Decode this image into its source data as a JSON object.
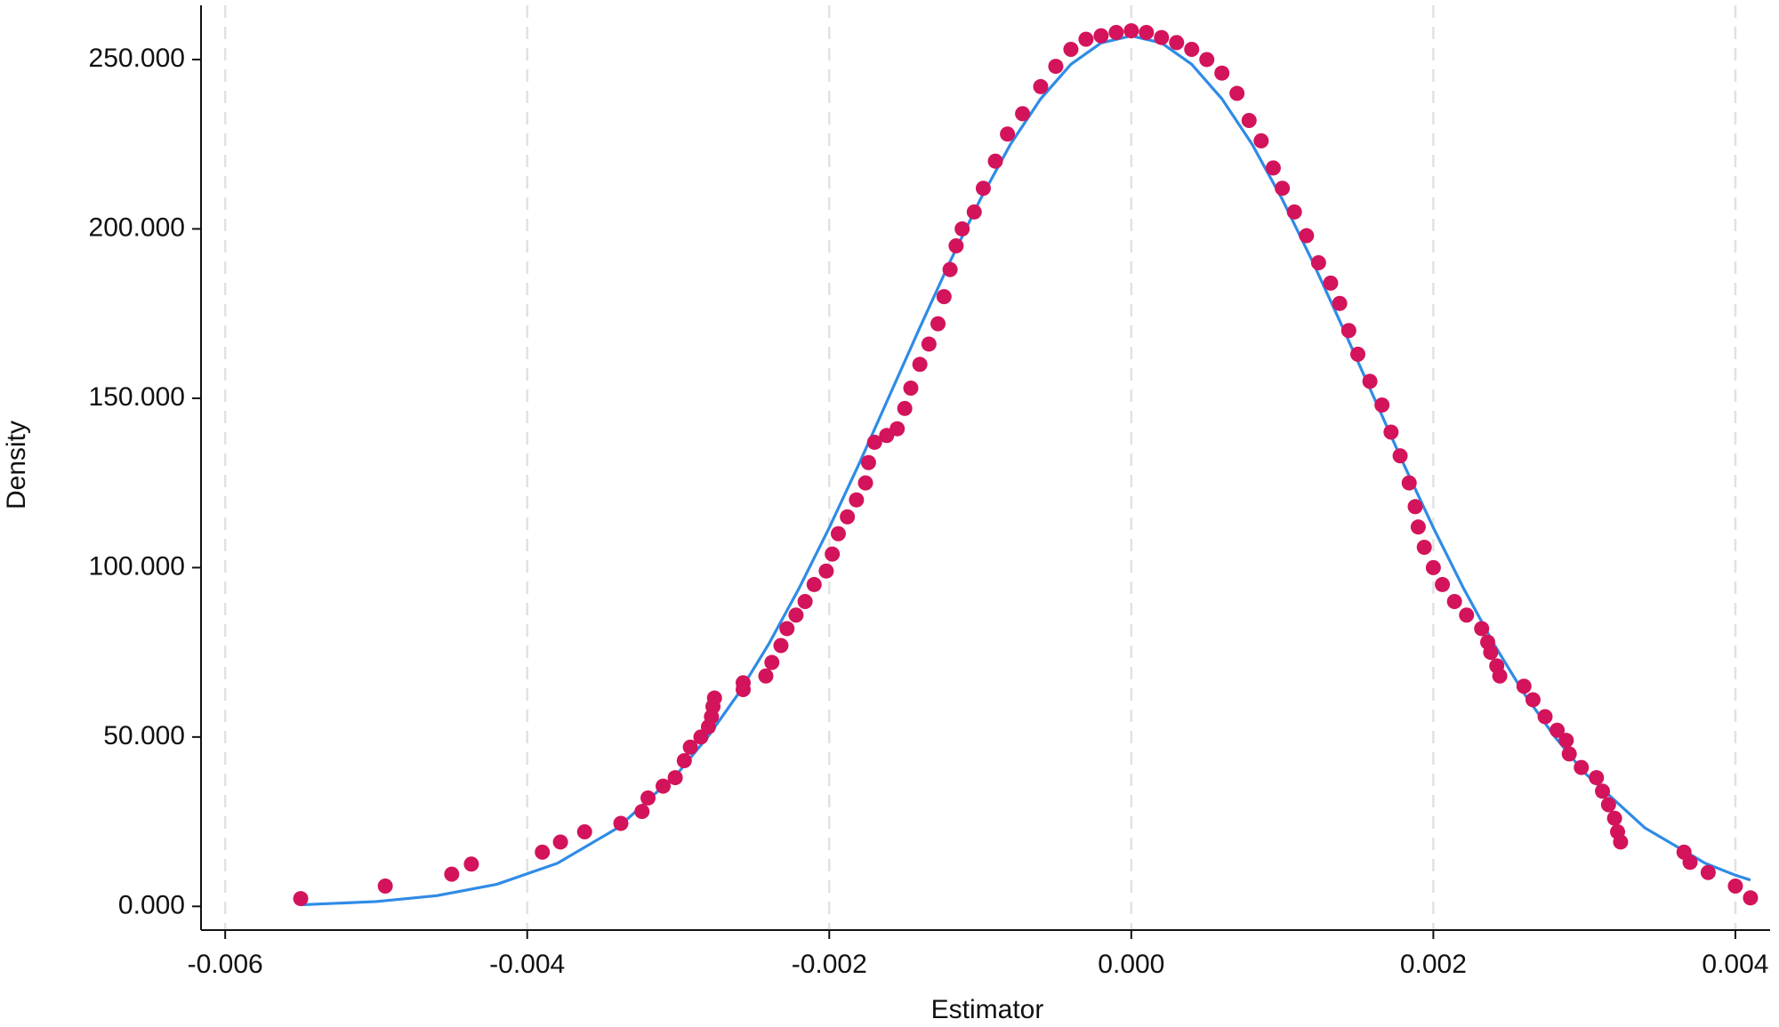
{
  "chart_data": {
    "type": "scatter",
    "xlabel": "Estimator",
    "ylabel": "Density",
    "xlim": [
      -0.00616,
      0.00423
    ],
    "ylim": [
      -7,
      266
    ],
    "xticks": [
      -0.006,
      -0.004,
      -0.002,
      {
        "value": 0,
        "label": "0.000"
      },
      0.002,
      0.004
    ],
    "yticks": [
      {
        "value": 0,
        "label": "0.000"
      },
      {
        "value": 50,
        "label": "50.000"
      },
      {
        "value": 100,
        "label": "100.000"
      },
      {
        "value": 150,
        "label": "150.000"
      },
      {
        "value": 200,
        "label": "200.000"
      },
      {
        "value": 250,
        "label": "250.000"
      }
    ],
    "grid": true,
    "series": [
      {
        "type": "scatter",
        "color": "#d3135b",
        "x": [
          -0.0055,
          -0.00494,
          -0.0045,
          -0.00437,
          -0.0039,
          -0.00378,
          -0.00362,
          -0.00338,
          -0.00324,
          -0.0032,
          -0.0031,
          -0.00302,
          -0.00296,
          -0.00292,
          -0.00285,
          -0.0028,
          -0.00278,
          -0.00277,
          -0.00276,
          -0.00257,
          -0.00257,
          -0.00242,
          -0.00238,
          -0.00232,
          -0.00228,
          -0.00222,
          -0.00216,
          -0.0021,
          -0.00202,
          -0.00198,
          -0.00194,
          -0.00188,
          -0.00182,
          -0.00176,
          -0.00174,
          -0.0017,
          -0.00162,
          -0.00155,
          -0.0015,
          -0.00146,
          -0.0014,
          -0.00134,
          -0.00128,
          -0.00124,
          -0.0012,
          -0.00116,
          -0.00112,
          -0.00104,
          -0.00098,
          -0.0009,
          -0.00082,
          -0.00072,
          -0.0006,
          -0.0005,
          -0.0004,
          -0.0003,
          -0.0002,
          -0.0001,
          0,
          0.0001,
          0.0002,
          0.0003,
          0.0004,
          0.0005,
          0.0006,
          0.0007,
          0.00078,
          0.00086,
          0.00094,
          0.001,
          0.00108,
          0.00116,
          0.00124,
          0.00132,
          0.00138,
          0.00144,
          0.0015,
          0.00158,
          0.00166,
          0.00172,
          0.00178,
          0.00184,
          0.00188,
          0.0019,
          0.00194,
          0.002,
          0.00206,
          0.00214,
          0.00222,
          0.00232,
          0.00236,
          0.00238,
          0.00242,
          0.00244,
          0.0026,
          0.00266,
          0.00274,
          0.00282,
          0.00288,
          0.0029,
          0.00298,
          0.00308,
          0.00312,
          0.00316,
          0.0032,
          0.00322,
          0.00324,
          0.00366,
          0.0037,
          0.00382,
          0.004,
          0.0041
        ],
        "values": [
          2.3,
          6,
          9.5,
          12.5,
          16,
          19,
          22,
          24.5,
          28,
          32,
          35.5,
          38,
          43,
          47,
          50,
          53,
          56,
          59,
          61.5,
          64,
          66,
          68,
          72,
          77,
          82,
          86,
          90,
          95,
          99,
          104,
          110,
          115,
          120,
          125,
          131,
          137,
          139,
          141,
          147,
          153,
          160,
          166,
          172,
          180,
          188,
          195,
          200,
          205,
          212,
          220,
          228,
          234,
          242,
          248,
          253,
          256,
          257,
          258,
          258.5,
          258,
          256.5,
          255,
          253,
          250,
          246,
          240,
          232,
          226,
          218,
          212,
          205,
          198,
          190,
          184,
          178,
          170,
          163,
          155,
          148,
          140,
          133,
          125,
          118,
          112,
          106,
          100,
          95,
          90,
          86,
          82,
          78,
          75,
          71,
          68,
          65,
          61,
          56,
          52,
          49,
          45,
          41,
          38,
          34,
          30,
          26,
          22,
          19,
          16,
          13,
          10,
          6,
          2.5
        ]
      },
      {
        "type": "line",
        "color": "#2f8be6",
        "x": [
          -0.0055,
          -0.005,
          -0.0046,
          -0.0042,
          -0.0038,
          -0.0034,
          -0.003,
          -0.0028,
          -0.0026,
          -0.0024,
          -0.0022,
          -0.002,
          -0.0018,
          -0.0016,
          -0.0014,
          -0.0012,
          -0.001,
          -0.0008,
          -0.0006,
          -0.0004,
          -0.0002,
          0,
          0.0002,
          0.0004,
          0.0006,
          0.0008,
          0.001,
          0.0012,
          0.0014,
          0.0016,
          0.0018,
          0.002,
          0.0022,
          0.0024,
          0.0026,
          0.0028,
          0.003,
          0.0034,
          0.0038,
          0.004,
          0.0041
        ],
        "values": [
          0.47,
          1.41,
          3.15,
          6.54,
          12.73,
          23.2,
          39.5,
          50.3,
          62.9,
          77.5,
          93.9,
          111.8,
          130.9,
          150.9,
          170.9,
          190.4,
          208.7,
          225,
          238.4,
          248.6,
          254.9,
          257,
          254.9,
          248.6,
          238.4,
          225,
          208.7,
          190.4,
          170.9,
          150.9,
          130.9,
          111.8,
          93.9,
          77.5,
          62.9,
          50.3,
          39.5,
          23.2,
          12.73,
          9.2,
          7.78
        ]
      }
    ]
  }
}
